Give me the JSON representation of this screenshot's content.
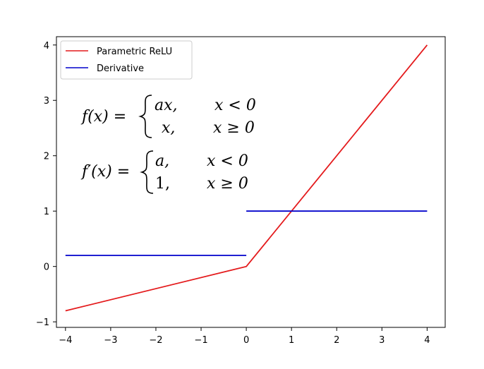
{
  "chart_data": {
    "type": "line",
    "title": "",
    "xlabel": "",
    "ylabel": "",
    "xlim": [
      -4.2,
      4.4
    ],
    "ylim": [
      -1.1,
      4.15
    ],
    "x_ticks": [
      -4,
      -3,
      -2,
      -1,
      0,
      1,
      2,
      3,
      4
    ],
    "x_tick_labels": [
      "−4",
      "−3",
      "−2",
      "−1",
      "0",
      "1",
      "2",
      "3",
      "4"
    ],
    "y_ticks": [
      -1,
      0,
      1,
      2,
      3,
      4
    ],
    "y_tick_labels": [
      "−1",
      "0",
      "1",
      "2",
      "3",
      "4"
    ],
    "grid": false,
    "legend_position": "top-left",
    "series": [
      {
        "name": "Parametric ReLU",
        "color": "#e41a1c",
        "segments": [
          {
            "x": [
              -4,
              0,
              4
            ],
            "y": [
              -0.8,
              0,
              4
            ]
          }
        ]
      },
      {
        "name": "Derivative",
        "color": "#0000cc",
        "segments": [
          {
            "x": [
              -4,
              0
            ],
            "y": [
              0.2,
              0.2
            ]
          },
          {
            "x": [
              0,
              4
            ],
            "y": [
              1,
              1
            ]
          }
        ]
      }
    ],
    "annotations": {
      "f_lhs": "f(x) =",
      "f_case1_expr": "ax,",
      "f_case1_cond": "x < 0",
      "f_case2_expr": "x,",
      "f_case2_cond": "x ≥ 0",
      "fp_lhs": "f′(x) =",
      "fp_case1_expr": "a,",
      "fp_case1_cond": "x < 0",
      "fp_case2_expr": "1,",
      "fp_case2_cond": "x ≥ 0"
    }
  }
}
